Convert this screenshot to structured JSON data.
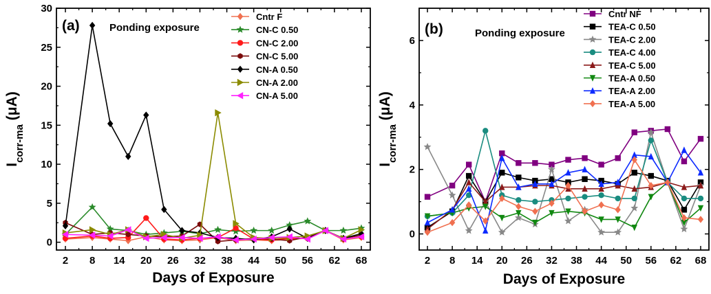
{
  "chart_data": [
    {
      "type": "line",
      "panel_label": "(a)",
      "annotation": "Ponding exposure",
      "xlabel": "Days of Exposure",
      "ylabel_main": "I",
      "ylabel_sub": "corr-ma",
      "ylabel_unit": " (μA)",
      "xlim": [
        0,
        70
      ],
      "ylim": [
        -1,
        30
      ],
      "xticks": [
        2,
        8,
        14,
        20,
        26,
        32,
        38,
        44,
        50,
        56,
        62,
        68
      ],
      "minor_xticks": [
        5,
        11,
        17,
        23,
        29,
        35,
        41,
        47,
        53,
        59,
        65
      ],
      "yticks": [
        0,
        5,
        10,
        15,
        20,
        25,
        30
      ],
      "legend_position": "top-right",
      "x": [
        2,
        8,
        12,
        16,
        20,
        24,
        28,
        32,
        36,
        40,
        44,
        48,
        52,
        56,
        60,
        64,
        68
      ],
      "series": [
        {
          "name": "Cntr F",
          "color": "#f07050",
          "marker": "diamond",
          "values": [
            0.4,
            0.6,
            0.4,
            0.2,
            0.7,
            0.3,
            0.2,
            0.3,
            0.6,
            0.2,
            0.3,
            0.2,
            0.4,
            0.5,
            1.5,
            0.3,
            0.6
          ]
        },
        {
          "name": "CN-C 0.50",
          "color": "#2a8a2a",
          "marker": "star",
          "values": [
            1.0,
            4.5,
            1.7,
            1.5,
            1.0,
            1.2,
            1.4,
            1.1,
            1.6,
            1.4,
            1.5,
            1.5,
            2.2,
            2.7,
            1.5,
            1.5,
            1.8
          ]
        },
        {
          "name": "CN-C 2.00",
          "color": "#ff1a1a",
          "marker": "circle",
          "values": [
            0.5,
            0.8,
            0.5,
            0.6,
            3.1,
            0.4,
            0.3,
            0.5,
            0.6,
            1.8,
            0.4,
            0.3,
            0.5,
            0.5,
            1.5,
            0.4,
            0.7
          ]
        },
        {
          "name": "CN-C 5.00",
          "color": "#7a0a0a",
          "marker": "hexagon",
          "values": [
            2.5,
            1.0,
            1.2,
            1.0,
            0.8,
            0.7,
            0.8,
            2.3,
            0.1,
            0.3,
            0.5,
            0.4,
            0.2,
            0.7,
            1.5,
            0.5,
            0.9
          ]
        },
        {
          "name": "CN-A 0.50",
          "color": "#000000",
          "marker": "diamond",
          "values": [
            2.1,
            27.8,
            15.2,
            11.0,
            16.3,
            4.2,
            1.5,
            1.2,
            0.6,
            0.5,
            0.3,
            0.7,
            1.7,
            0.5,
            1.5,
            0.5,
            1.1
          ]
        },
        {
          "name": "CN-A 2.00",
          "color": "#8b8b00",
          "marker": "triangle-right",
          "values": [
            1.2,
            1.6,
            1.0,
            1.6,
            0.7,
            1.0,
            0.5,
            0.9,
            16.6,
            2.4,
            0.6,
            0.5,
            0.6,
            0.8,
            1.5,
            0.5,
            1.6
          ]
        },
        {
          "name": "CN-A 5.00",
          "color": "#ff22ff",
          "marker": "triangle-left",
          "values": [
            1.0,
            0.9,
            0.8,
            1.6,
            0.5,
            0.6,
            0.6,
            0.5,
            0.7,
            0.3,
            0.4,
            0.6,
            0.7,
            0.4,
            1.5,
            0.4,
            0.7
          ]
        }
      ]
    },
    {
      "type": "line",
      "panel_label": "(b)",
      "annotation": "Ponding exposure",
      "xlabel": "Days of Exposure",
      "ylabel_main": "I",
      "ylabel_sub": "corr-ma",
      "ylabel_unit": " (μA)",
      "xlim": [
        0,
        70
      ],
      "ylim": [
        -0.5,
        7
      ],
      "xticks": [
        2,
        8,
        14,
        20,
        26,
        32,
        38,
        44,
        50,
        56,
        62,
        68
      ],
      "minor_xticks": [
        5,
        11,
        17,
        23,
        29,
        35,
        41,
        47,
        53,
        59,
        65
      ],
      "yticks": [
        0,
        2,
        4,
        6
      ],
      "legend_position": "top-right",
      "x": [
        2,
        8,
        12,
        16,
        20,
        24,
        28,
        32,
        36,
        40,
        44,
        48,
        52,
        56,
        60,
        64,
        68
      ],
      "series": [
        {
          "name": "Cntr NF",
          "color": "#800080",
          "marker": "square",
          "values": [
            1.15,
            1.5,
            2.15,
            1.0,
            2.5,
            2.2,
            2.2,
            2.15,
            2.3,
            2.35,
            2.15,
            2.35,
            3.15,
            3.2,
            3.25,
            2.25,
            2.95
          ]
        },
        {
          "name": "TEA-C 0.50",
          "color": "#000000",
          "marker": "square",
          "values": [
            0.2,
            0.7,
            1.8,
            1.0,
            1.9,
            1.75,
            1.65,
            1.7,
            1.6,
            1.7,
            1.65,
            1.55,
            1.9,
            1.8,
            1.65,
            0.75,
            1.6
          ]
        },
        {
          "name": "TEA-C 2.00",
          "color": "#888888",
          "marker": "star",
          "values": [
            2.7,
            1.2,
            0.1,
            1.0,
            0.05,
            0.5,
            0.3,
            2.0,
            0.4,
            0.75,
            0.05,
            0.05,
            0.8,
            3.15,
            1.6,
            0.15,
            1.5
          ]
        },
        {
          "name": "TEA-C 4.00",
          "color": "#1a8c80",
          "marker": "circle",
          "values": [
            0.55,
            0.65,
            1.2,
            3.2,
            1.2,
            1.05,
            1.0,
            1.05,
            1.1,
            1.15,
            1.2,
            1.1,
            1.1,
            2.9,
            1.6,
            1.1,
            1.1
          ]
        },
        {
          "name": "TEA-C 5.00",
          "color": "#8b1a1a",
          "marker": "triangle-up",
          "values": [
            0.15,
            0.75,
            1.6,
            1.0,
            1.45,
            1.45,
            1.5,
            1.5,
            1.4,
            1.4,
            1.4,
            1.5,
            1.4,
            1.45,
            1.6,
            1.45,
            1.5
          ]
        },
        {
          "name": "TEA-A 0.50",
          "color": "#118811",
          "marker": "triangle-down",
          "values": [
            0.55,
            0.65,
            0.8,
            0.85,
            0.5,
            0.65,
            0.35,
            0.65,
            0.7,
            0.65,
            0.45,
            0.45,
            0.2,
            1.15,
            1.6,
            0.35,
            0.8
          ]
        },
        {
          "name": "TEA-A 2.00",
          "color": "#0d2bff",
          "marker": "triangle-up",
          "values": [
            0.35,
            0.75,
            1.4,
            0.1,
            2.35,
            1.45,
            1.55,
            1.55,
            1.9,
            2.0,
            1.55,
            1.6,
            2.45,
            2.4,
            1.6,
            2.6,
            1.9
          ]
        },
        {
          "name": "TEA-A 5.00",
          "color": "#f07050",
          "marker": "diamond",
          "values": [
            0.05,
            0.35,
            0.9,
            0.4,
            1.1,
            0.85,
            0.7,
            0.95,
            1.5,
            0.7,
            0.9,
            0.75,
            2.3,
            1.5,
            1.6,
            0.5,
            0.45
          ]
        }
      ]
    }
  ]
}
